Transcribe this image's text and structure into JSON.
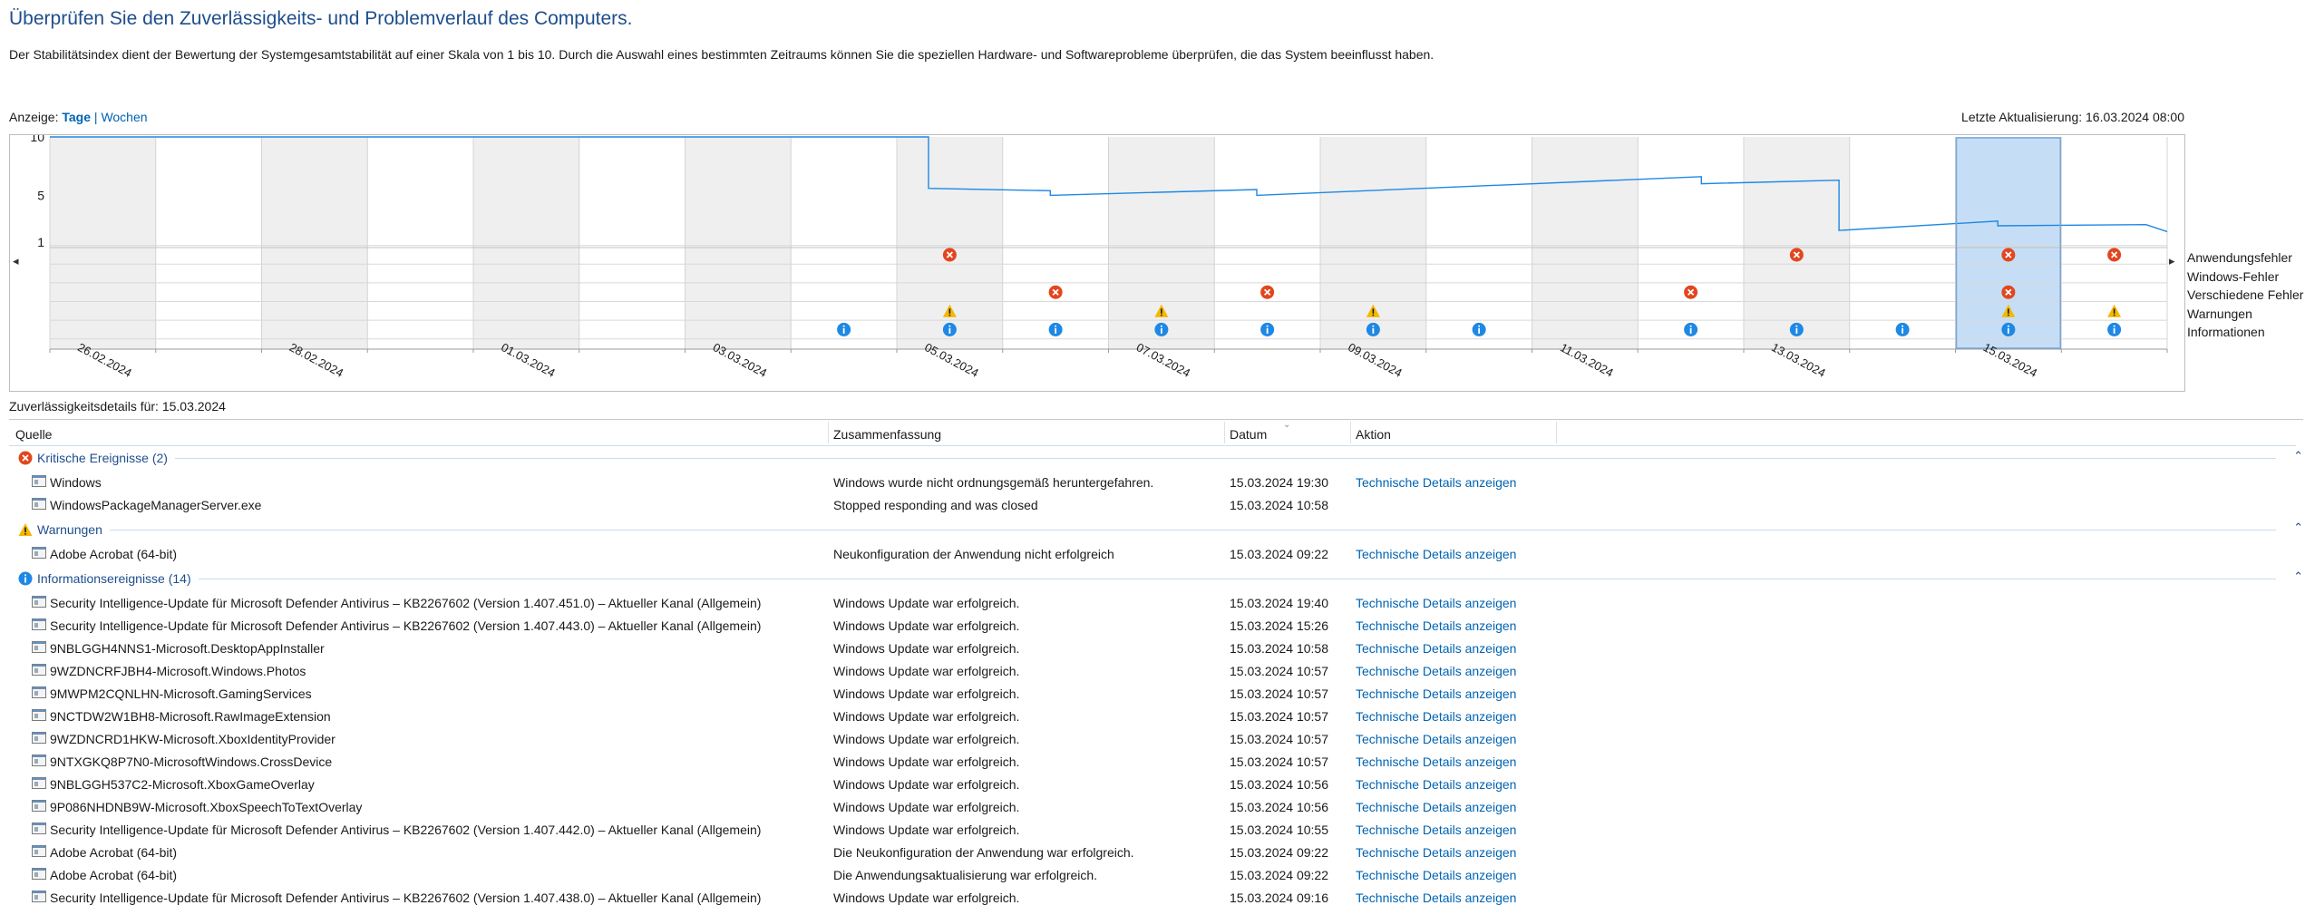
{
  "header": {
    "title": "Überprüfen Sie den Zuverlässigkeits- und Problemverlauf des Computers.",
    "description": "Der Stabilitätsindex dient der Bewertung der Systemgesamtstabilität auf einer Skala von 1 bis 10. Durch die Auswahl eines bestimmten Zeitraums können Sie die speziellen Hardware- und Softwareprobleme überprüfen, die das System beeinflusst haben.",
    "view_label": "Anzeige:",
    "view_days": "Tage",
    "view_separator": "|",
    "view_weeks": "Wochen",
    "last_update": "Letzte Aktualisierung: 16.03.2024 08:00"
  },
  "chart_data": {
    "type": "line",
    "y_ticks": [
      "10",
      "5",
      "1"
    ],
    "ylim": [
      1,
      10
    ],
    "x_labels": [
      "26.02.2024",
      "28.02.2024",
      "01.03.2024",
      "03.03.2024",
      "05.03.2024",
      "07.03.2024",
      "09.03.2024",
      "11.03.2024",
      "13.03.2024",
      "15.03.2024"
    ],
    "columns": 20,
    "selected_column": 18,
    "selected_date": "15.03.2024",
    "stability_index": [
      [
        0,
        10
      ],
      [
        8.3,
        10
      ],
      [
        8.3,
        5.6
      ],
      [
        9.45,
        5.4
      ],
      [
        9.45,
        5.0
      ],
      [
        11.4,
        5.5
      ],
      [
        11.4,
        5.0
      ],
      [
        15.6,
        6.6
      ],
      [
        15.6,
        6.0
      ],
      [
        16.9,
        6.3
      ],
      [
        16.9,
        2.0
      ],
      [
        18.4,
        2.8
      ],
      [
        18.4,
        2.4
      ],
      [
        19.8,
        2.5
      ],
      [
        20,
        1.9
      ]
    ],
    "event_rows": [
      "Anwendungsfehler",
      "Windows-Fehler",
      "Verschiedene Fehler",
      "Warnungen",
      "Informationen"
    ],
    "events": {
      "Anwendungsfehler": [
        8,
        16,
        18,
        19
      ],
      "Windows-Fehler": [],
      "Verschiedene Fehler": [
        9,
        11,
        15,
        18
      ],
      "Warnungen": [
        8,
        10,
        12,
        18,
        19
      ],
      "Informationen": [
        7,
        8,
        9,
        10,
        11,
        12,
        13,
        15,
        16,
        17,
        18,
        19
      ]
    },
    "colors": {
      "line": "#1e88e5",
      "shaded": "#efefef",
      "selected": "#c6def5",
      "error": "#e2461e",
      "warning": "#f5b800",
      "info": "#1e88e5"
    }
  },
  "details": {
    "label": "Zuverlässigkeitsdetails für: 15.03.2024",
    "columns": {
      "source": "Quelle",
      "summary": "Zusammenfassung",
      "date": "Datum",
      "action": "Aktion"
    },
    "groups": [
      {
        "title": "Kritische Ereignisse (2)",
        "icon": "error-icon",
        "rows": [
          {
            "source": "Windows",
            "summary": "Windows wurde nicht ordnungsgemäß heruntergefahren.",
            "date": "15.03.2024 19:30",
            "action": "Technische Details anzeigen"
          },
          {
            "source": "WindowsPackageManagerServer.exe",
            "summary": "Stopped responding and was closed",
            "date": "15.03.2024 10:58",
            "action": ""
          }
        ]
      },
      {
        "title": "Warnungen",
        "icon": "warning-icon",
        "rows": [
          {
            "source": "Adobe Acrobat (64-bit)",
            "summary": "Neukonfiguration der Anwendung nicht erfolgreich",
            "date": "15.03.2024 09:22",
            "action": "Technische Details anzeigen"
          }
        ]
      },
      {
        "title": "Informationsereignisse (14)",
        "icon": "info-icon",
        "rows": [
          {
            "source": "Security Intelligence-Update für Microsoft Defender Antivirus – KB2267602 (Version 1.407.451.0) – Aktueller Kanal (Allgemein)",
            "summary": "Windows Update war erfolgreich.",
            "date": "15.03.2024 19:40",
            "action": "Technische Details anzeigen"
          },
          {
            "source": "Security Intelligence-Update für Microsoft Defender Antivirus – KB2267602 (Version 1.407.443.0) – Aktueller Kanal (Allgemein)",
            "summary": "Windows Update war erfolgreich.",
            "date": "15.03.2024 15:26",
            "action": "Technische Details anzeigen"
          },
          {
            "source": "9NBLGGH4NNS1-Microsoft.DesktopAppInstaller",
            "summary": "Windows Update war erfolgreich.",
            "date": "15.03.2024 10:58",
            "action": "Technische Details anzeigen"
          },
          {
            "source": "9WZDNCRFJBH4-Microsoft.Windows.Photos",
            "summary": "Windows Update war erfolgreich.",
            "date": "15.03.2024 10:57",
            "action": "Technische Details anzeigen"
          },
          {
            "source": "9MWPM2CQNLHN-Microsoft.GamingServices",
            "summary": "Windows Update war erfolgreich.",
            "date": "15.03.2024 10:57",
            "action": "Technische Details anzeigen"
          },
          {
            "source": "9NCTDW2W1BH8-Microsoft.RawImageExtension",
            "summary": "Windows Update war erfolgreich.",
            "date": "15.03.2024 10:57",
            "action": "Technische Details anzeigen"
          },
          {
            "source": "9WZDNCRD1HKW-Microsoft.XboxIdentityProvider",
            "summary": "Windows Update war erfolgreich.",
            "date": "15.03.2024 10:57",
            "action": "Technische Details anzeigen"
          },
          {
            "source": "9NTXGKQ8P7N0-MicrosoftWindows.CrossDevice",
            "summary": "Windows Update war erfolgreich.",
            "date": "15.03.2024 10:57",
            "action": "Technische Details anzeigen"
          },
          {
            "source": "9NBLGGH537C2-Microsoft.XboxGameOverlay",
            "summary": "Windows Update war erfolgreich.",
            "date": "15.03.2024 10:56",
            "action": "Technische Details anzeigen"
          },
          {
            "source": "9P086NHDNB9W-Microsoft.XboxSpeechToTextOverlay",
            "summary": "Windows Update war erfolgreich.",
            "date": "15.03.2024 10:56",
            "action": "Technische Details anzeigen"
          },
          {
            "source": "Security Intelligence-Update für Microsoft Defender Antivirus – KB2267602 (Version 1.407.442.0) – Aktueller Kanal (Allgemein)",
            "summary": "Windows Update war erfolgreich.",
            "date": "15.03.2024 10:55",
            "action": "Technische Details anzeigen"
          },
          {
            "source": "Adobe Acrobat (64-bit)",
            "summary": "Die Neukonfiguration der Anwendung war erfolgreich.",
            "date": "15.03.2024 09:22",
            "action": "Technische Details anzeigen"
          },
          {
            "source": "Adobe Acrobat (64-bit)",
            "summary": "Die Anwendungsaktualisierung war erfolgreich.",
            "date": "15.03.2024 09:22",
            "action": "Technische Details anzeigen"
          },
          {
            "source": "Security Intelligence-Update für Microsoft Defender Antivirus – KB2267602 (Version 1.407.438.0) – Aktueller Kanal (Allgemein)",
            "summary": "Windows Update war erfolgreich.",
            "date": "15.03.2024 09:16",
            "action": "Technische Details anzeigen"
          }
        ]
      }
    ]
  }
}
